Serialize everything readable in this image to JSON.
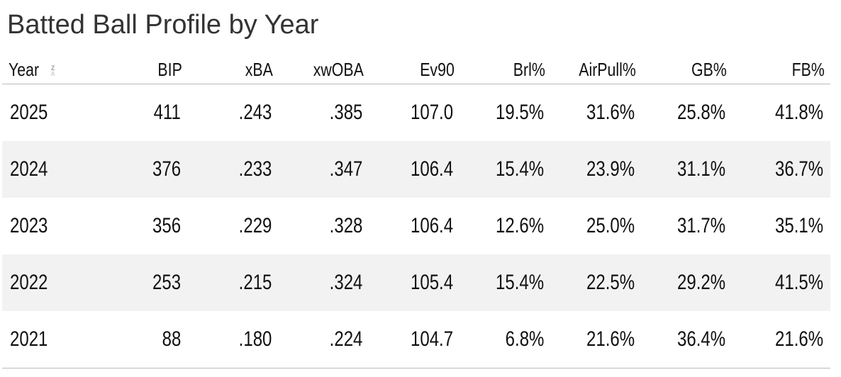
{
  "title": "Batted Ball Profile by Year",
  "table": {
    "columns": [
      "Year",
      "BIP",
      "xBA",
      "xwOBA",
      "Ev90",
      "Brl%",
      "AirPull%",
      "GB%",
      "FB%"
    ],
    "sort_icon": "sort-za-icon",
    "rows": [
      [
        "2025",
        "411",
        ".243",
        ".385",
        "107.0",
        "19.5%",
        "31.6%",
        "25.8%",
        "41.8%"
      ],
      [
        "2024",
        "376",
        ".233",
        ".347",
        "106.4",
        "15.4%",
        "23.9%",
        "31.1%",
        "36.7%"
      ],
      [
        "2023",
        "356",
        ".229",
        ".328",
        "106.4",
        "12.6%",
        "25.0%",
        "31.7%",
        "35.1%"
      ],
      [
        "2022",
        "253",
        ".215",
        ".324",
        "105.4",
        "15.4%",
        "22.5%",
        "29.2%",
        "41.5%"
      ],
      [
        "2021",
        "88",
        ".180",
        ".224",
        "104.7",
        "6.8%",
        "21.6%",
        "36.4%",
        "21.6%"
      ]
    ]
  }
}
